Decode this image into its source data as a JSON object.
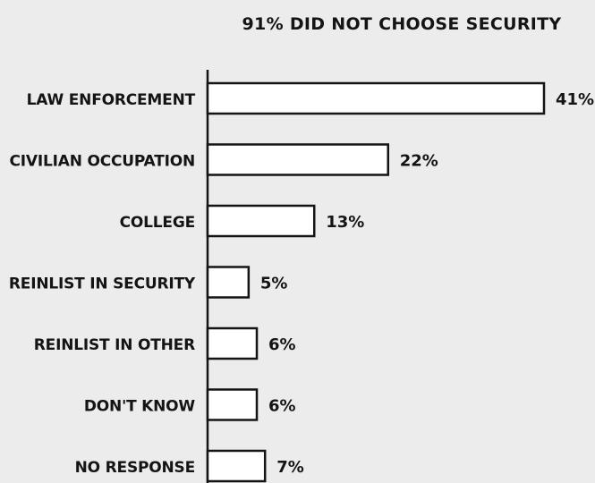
{
  "chart_data": {
    "type": "bar",
    "orientation": "horizontal",
    "title": "91% DID NOT CHOOSE SECURITY",
    "categories": [
      "LAW ENFORCEMENT",
      "CIVILIAN OCCUPATION",
      "COLLEGE",
      "REINLIST IN SECURITY",
      "REINLIST IN OTHER",
      "DON'T KNOW",
      "NO RESPONSE"
    ],
    "values": [
      41,
      22,
      13,
      5,
      6,
      6,
      7
    ],
    "value_labels": [
      "41%",
      "22%",
      "13%",
      "5%",
      "6%",
      "6%",
      "7%"
    ],
    "unit": "%",
    "xlim": [
      0,
      41
    ],
    "grid": false,
    "legend": "none",
    "colors": {
      "bar_fill": "#ffffff",
      "bar_stroke": "#141414",
      "background": "#ececec",
      "text": "#141414"
    }
  }
}
